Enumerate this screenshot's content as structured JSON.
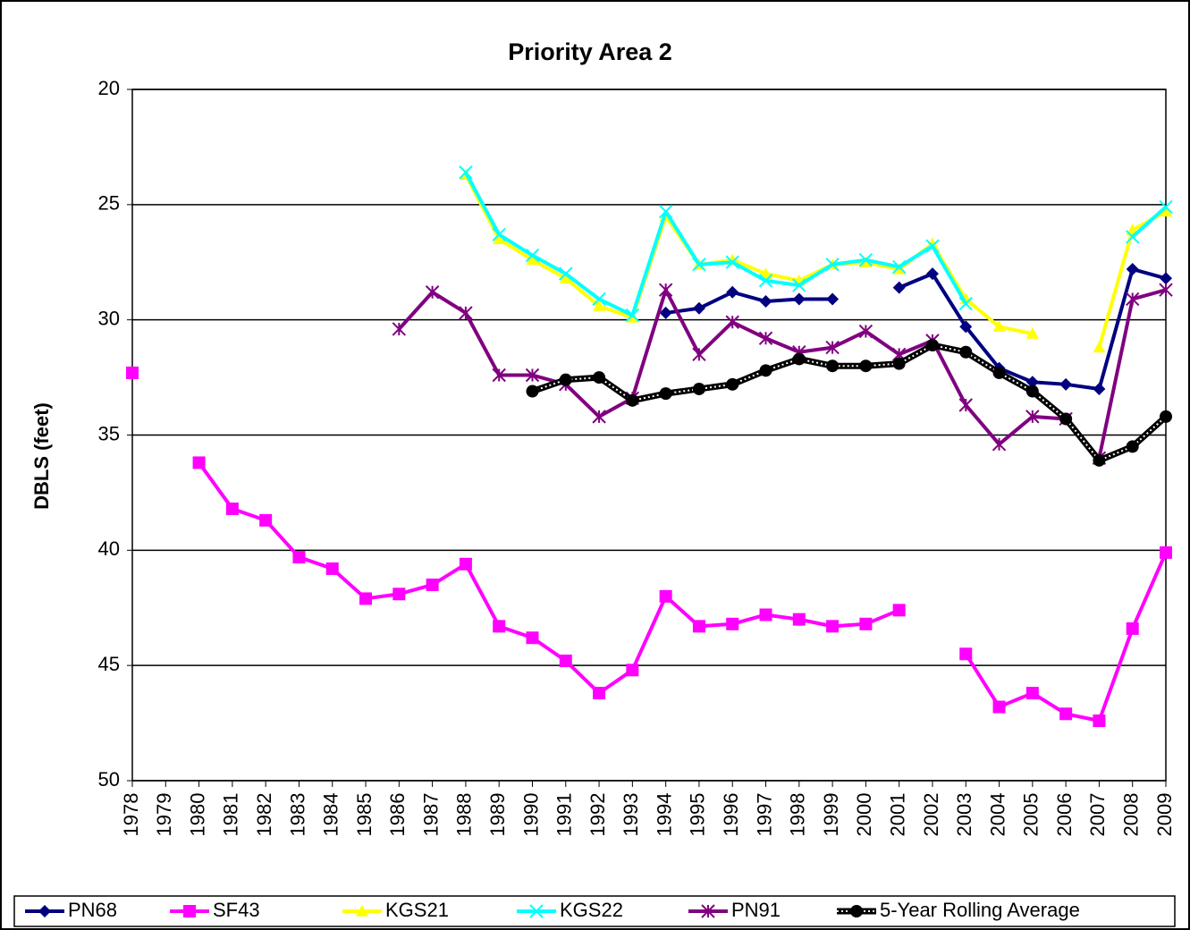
{
  "chart_data": {
    "type": "line",
    "title": "Priority Area 2",
    "y_label": "DBLS (feet)",
    "categories": [
      "1978",
      "1979",
      "1980",
      "1981",
      "1982",
      "1983",
      "1984",
      "1985",
      "1986",
      "1987",
      "1988",
      "1989",
      "1990",
      "1991",
      "1992",
      "1993",
      "1994",
      "1995",
      "1996",
      "1997",
      "1998",
      "1999",
      "2000",
      "2001",
      "2002",
      "2003",
      "2004",
      "2005",
      "2006",
      "2007",
      "2008",
      "2009"
    ],
    "ylim": [
      20,
      50
    ],
    "yticks": [
      20,
      25,
      30,
      35,
      40,
      45,
      50
    ],
    "y_reversed": true,
    "grid": true,
    "series": [
      {
        "name": "PN68",
        "color": "#000080",
        "marker": "diamond",
        "values": [
          null,
          null,
          null,
          null,
          null,
          null,
          null,
          null,
          null,
          null,
          null,
          null,
          null,
          null,
          null,
          null,
          29.7,
          29.5,
          28.8,
          29.2,
          29.1,
          29.1,
          null,
          28.6,
          28.0,
          30.3,
          32.1,
          32.7,
          32.8,
          33.0,
          27.8,
          28.2
        ]
      },
      {
        "name": "SF43",
        "color": "#ff00ff",
        "marker": "square",
        "values": [
          32.3,
          null,
          36.2,
          38.2,
          38.7,
          40.3,
          40.8,
          42.1,
          41.9,
          41.5,
          40.6,
          43.3,
          43.8,
          44.8,
          46.2,
          45.2,
          42.0,
          43.3,
          43.2,
          42.8,
          43.0,
          43.3,
          43.2,
          42.6,
          null,
          44.5,
          46.8,
          46.2,
          47.1,
          47.4,
          43.4,
          40.1
        ]
      },
      {
        "name": "KGS21",
        "color": "#ffff00",
        "marker": "triangle",
        "values": [
          null,
          null,
          null,
          null,
          null,
          null,
          null,
          null,
          null,
          null,
          23.7,
          26.5,
          27.4,
          28.2,
          29.4,
          29.9,
          25.5,
          27.6,
          27.4,
          28.0,
          28.3,
          27.6,
          27.5,
          27.8,
          26.7,
          29.1,
          30.3,
          30.6,
          null,
          31.2,
          26.1,
          25.3
        ]
      },
      {
        "name": "KGS22",
        "color": "#00ffff",
        "marker": "x",
        "values": [
          null,
          null,
          null,
          null,
          null,
          null,
          null,
          null,
          null,
          null,
          23.6,
          26.3,
          27.2,
          28.0,
          29.1,
          29.8,
          25.3,
          27.6,
          27.5,
          28.3,
          28.5,
          27.6,
          27.4,
          27.7,
          26.8,
          29.3,
          null,
          null,
          null,
          null,
          26.4,
          25.1
        ]
      },
      {
        "name": "PN91",
        "color": "#800080",
        "marker": "star",
        "values": [
          null,
          null,
          null,
          null,
          null,
          null,
          null,
          null,
          30.4,
          28.8,
          29.7,
          32.4,
          32.4,
          32.8,
          34.2,
          33.4,
          28.7,
          31.5,
          30.1,
          30.8,
          31.4,
          31.2,
          30.5,
          31.5,
          30.9,
          33.7,
          35.4,
          34.2,
          34.3,
          36.0,
          29.1,
          28.7
        ]
      },
      {
        "name": "5-Year Rolling Average",
        "color": "#000000",
        "marker": "circle",
        "hatched": true,
        "values": [
          null,
          null,
          null,
          null,
          null,
          null,
          null,
          null,
          null,
          null,
          null,
          null,
          33.1,
          32.6,
          32.5,
          33.5,
          33.2,
          33.0,
          32.8,
          32.2,
          31.7,
          32.0,
          32.0,
          31.9,
          31.1,
          31.4,
          32.3,
          33.1,
          34.3,
          36.1,
          35.5,
          34.2
        ]
      }
    ]
  }
}
